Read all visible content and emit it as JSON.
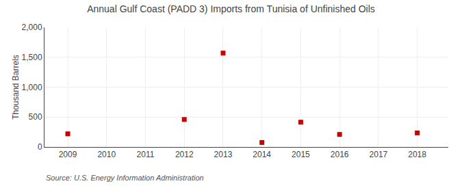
{
  "chart_data": {
    "type": "scatter",
    "title": "Annual Gulf Coast (PADD 3) Imports from Tunisia of Unfinished Oils",
    "ylabel": "Thousand Barrels",
    "annotations": [
      "Source: U.S. Energy Information Administration"
    ],
    "x": [
      2009,
      2010,
      2011,
      2012,
      2013,
      2014,
      2015,
      2016,
      2017,
      2018
    ],
    "values": [
      220,
      null,
      null,
      460,
      1570,
      75,
      415,
      210,
      null,
      235
    ],
    "color": "#cc0000",
    "marker": "square",
    "xlim": [
      2008.4,
      2018.8
    ],
    "xticks": [
      2009,
      2010,
      2011,
      2012,
      2013,
      2014,
      2015,
      2016,
      2017,
      2018
    ],
    "ylim": [
      0,
      2000
    ],
    "yticks": [
      0,
      500,
      {
        "value": 1000,
        "label": "1,000"
      },
      {
        "value": 1500,
        "label": "1,500"
      },
      {
        "value": 2000,
        "label": "2,000"
      }
    ],
    "grid": true
  }
}
